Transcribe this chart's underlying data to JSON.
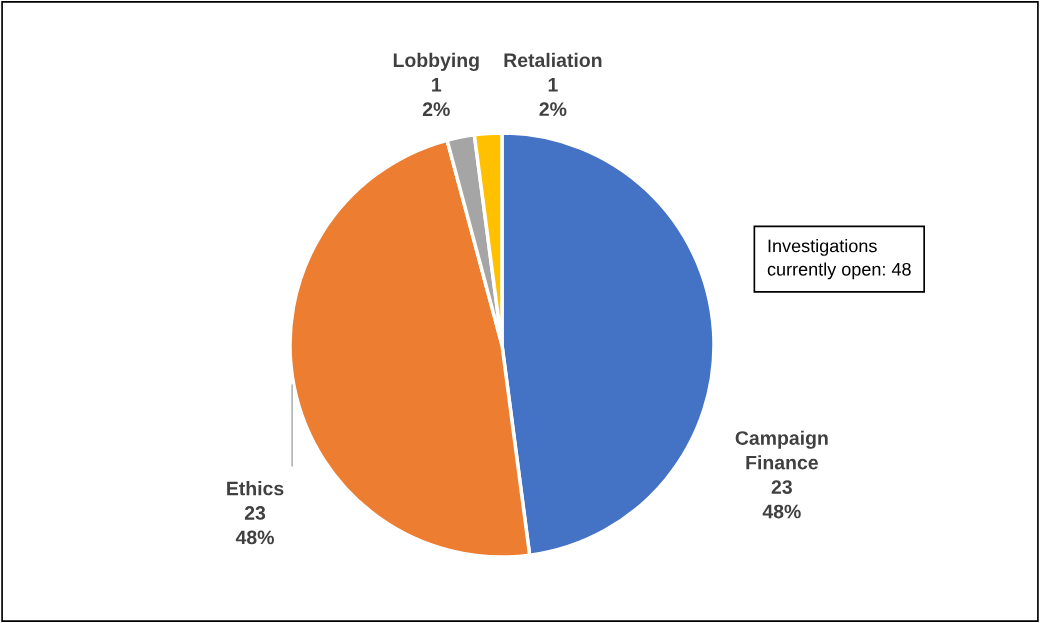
{
  "chart_data": {
    "type": "pie",
    "categories": [
      "Campaign Finance",
      "Ethics",
      "Lobbying",
      "Retaliation"
    ],
    "values": [
      23,
      23,
      1,
      1
    ],
    "value_labels": [
      "23\n48%",
      "23\n48%",
      "1\n2%",
      "1\n2%"
    ],
    "colors": [
      "#4472c4",
      "#ed7d31",
      "#a5a5a5",
      "#ffc000"
    ],
    "annotations": [
      "Investigations\ncurrently open: 48"
    ],
    "legend": false
  }
}
